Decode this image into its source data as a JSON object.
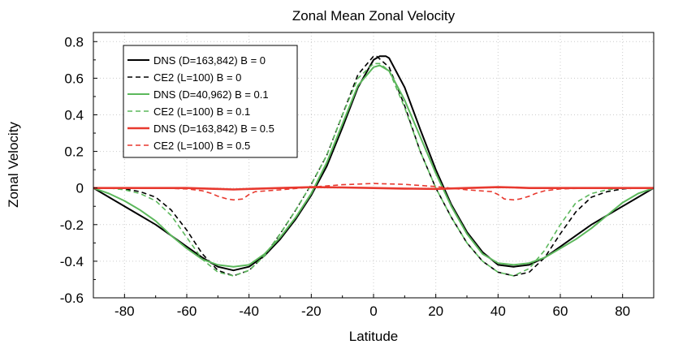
{
  "chart_data": {
    "type": "line",
    "title": "Zonal Mean Zonal Velocity",
    "xlabel": "Latitude",
    "ylabel": "Zonal Velocity",
    "xlim": [
      -90,
      90
    ],
    "ylim": [
      -0.6,
      0.85
    ],
    "xticks": [
      -80,
      -60,
      -40,
      -20,
      0,
      20,
      40,
      60,
      80
    ],
    "yticks": [
      -0.6,
      -0.4,
      -0.2,
      0,
      0.2,
      0.4,
      0.6,
      0.8
    ],
    "grid": true,
    "legend_position": "top-left",
    "series": [
      {
        "name": "DNS (D=163,842) B = 0",
        "color": "#000000",
        "dash": "solid",
        "width": 2,
        "x": [
          -90,
          -85,
          -80,
          -75,
          -70,
          -65,
          -60,
          -55,
          -50,
          -45,
          -40,
          -35,
          -30,
          -25,
          -20,
          -15,
          -10,
          -5,
          0,
          2,
          4,
          5,
          10,
          15,
          20,
          25,
          30,
          35,
          40,
          45,
          50,
          55,
          60,
          65,
          70,
          75,
          80,
          85,
          90
        ],
        "y": [
          0,
          -0.05,
          -0.1,
          -0.15,
          -0.2,
          -0.26,
          -0.32,
          -0.38,
          -0.43,
          -0.45,
          -0.43,
          -0.37,
          -0.28,
          -0.17,
          -0.04,
          0.12,
          0.33,
          0.55,
          0.7,
          0.72,
          0.72,
          0.71,
          0.55,
          0.32,
          0.1,
          -0.09,
          -0.24,
          -0.35,
          -0.42,
          -0.43,
          -0.42,
          -0.38,
          -0.32,
          -0.26,
          -0.2,
          -0.15,
          -0.1,
          -0.05,
          0
        ]
      },
      {
        "name": "CE2 (L=100) B = 0",
        "color": "#000000",
        "dash": "6,4",
        "width": 1.6,
        "x": [
          -90,
          -85,
          -80,
          -75,
          -70,
          -65,
          -60,
          -55,
          -50,
          -45,
          -40,
          -35,
          -30,
          -25,
          -20,
          -15,
          -10,
          -5,
          0,
          1,
          5,
          10,
          15,
          20,
          25,
          30,
          35,
          40,
          45,
          50,
          55,
          60,
          65,
          70,
          75,
          80,
          85,
          90
        ],
        "y": [
          0,
          0,
          -0.005,
          -0.02,
          -0.05,
          -0.12,
          -0.23,
          -0.36,
          -0.45,
          -0.48,
          -0.45,
          -0.37,
          -0.25,
          -0.12,
          0.02,
          0.18,
          0.4,
          0.62,
          0.72,
          0.72,
          0.66,
          0.45,
          0.2,
          0,
          -0.16,
          -0.3,
          -0.4,
          -0.46,
          -0.48,
          -0.46,
          -0.38,
          -0.25,
          -0.13,
          -0.05,
          -0.02,
          -0.005,
          0,
          0
        ]
      },
      {
        "name": "DNS (D=40,962) B = 0.1",
        "color": "#5cb85c",
        "dash": "solid",
        "width": 2,
        "x": [
          -90,
          -85,
          -80,
          -75,
          -70,
          -65,
          -60,
          -55,
          -50,
          -45,
          -40,
          -35,
          -30,
          -25,
          -20,
          -15,
          -10,
          -5,
          0,
          2,
          5,
          10,
          15,
          20,
          25,
          30,
          35,
          40,
          45,
          50,
          55,
          60,
          65,
          70,
          75,
          80,
          85,
          90
        ],
        "y": [
          0,
          -0.03,
          -0.07,
          -0.12,
          -0.18,
          -0.26,
          -0.33,
          -0.39,
          -0.42,
          -0.43,
          -0.42,
          -0.36,
          -0.27,
          -0.16,
          -0.03,
          0.14,
          0.35,
          0.56,
          0.66,
          0.67,
          0.64,
          0.48,
          0.28,
          0.08,
          -0.1,
          -0.25,
          -0.36,
          -0.41,
          -0.42,
          -0.41,
          -0.38,
          -0.33,
          -0.28,
          -0.22,
          -0.15,
          -0.08,
          -0.03,
          0
        ]
      },
      {
        "name": "CE2 (L=100) B = 0.1",
        "color": "#5cb85c",
        "dash": "6,4",
        "width": 1.6,
        "x": [
          -90,
          -85,
          -80,
          -75,
          -70,
          -65,
          -60,
          -55,
          -50,
          -45,
          -40,
          -35,
          -30,
          -25,
          -20,
          -15,
          -10,
          -5,
          0,
          2,
          5,
          10,
          15,
          20,
          25,
          30,
          35,
          40,
          45,
          50,
          55,
          60,
          65,
          70,
          75,
          80,
          85,
          90
        ],
        "y": [
          0,
          0,
          -0.01,
          -0.03,
          -0.07,
          -0.15,
          -0.27,
          -0.39,
          -0.46,
          -0.48,
          -0.45,
          -0.37,
          -0.25,
          -0.12,
          0.02,
          0.18,
          0.4,
          0.6,
          0.68,
          0.68,
          0.64,
          0.44,
          0.2,
          0,
          -0.16,
          -0.3,
          -0.4,
          -0.46,
          -0.48,
          -0.44,
          -0.34,
          -0.2,
          -0.08,
          -0.03,
          -0.01,
          0,
          0,
          0
        ]
      },
      {
        "name": "DNS (D=163,842) B = 0.5",
        "color": "#e8392f",
        "dash": "solid",
        "width": 2.6,
        "x": [
          -90,
          -80,
          -70,
          -60,
          -50,
          -45,
          -40,
          -30,
          -20,
          -10,
          0,
          10,
          20,
          30,
          40,
          45,
          50,
          60,
          70,
          80,
          90
        ],
        "y": [
          0,
          0,
          0,
          0,
          -0.005,
          -0.008,
          -0.005,
          0,
          0.005,
          0.003,
          0,
          -0.003,
          -0.005,
          0,
          0.005,
          0.003,
          0,
          0,
          0,
          0,
          0
        ]
      },
      {
        "name": "CE2 (L=100) B = 0.5",
        "color": "#e8392f",
        "dash": "6,4",
        "width": 1.6,
        "x": [
          -90,
          -80,
          -70,
          -60,
          -55,
          -52,
          -50,
          -47,
          -45,
          -42,
          -40,
          -38,
          -30,
          -20,
          -10,
          0,
          10,
          20,
          30,
          38,
          40,
          42,
          45,
          47,
          50,
          52,
          55,
          60,
          70,
          80,
          90
        ],
        "y": [
          0,
          0,
          0,
          -0.005,
          -0.015,
          -0.03,
          -0.045,
          -0.06,
          -0.065,
          -0.06,
          -0.035,
          -0.02,
          -0.01,
          0.005,
          0.018,
          0.025,
          0.02,
          0.008,
          -0.01,
          -0.02,
          -0.035,
          -0.06,
          -0.065,
          -0.06,
          -0.045,
          -0.03,
          -0.015,
          -0.005,
          0,
          0,
          0
        ]
      }
    ]
  }
}
